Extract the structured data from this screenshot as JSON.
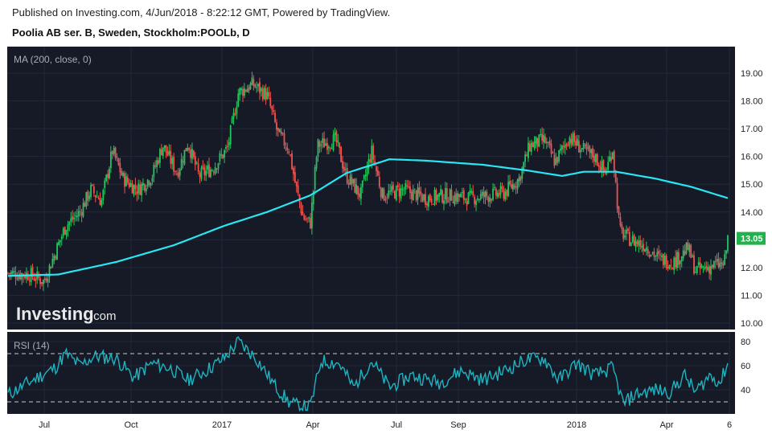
{
  "header": {
    "published": "Published on Investing.com, 4/Jun/2018 - 8:22:12 GMT, Powered by TradingView.",
    "title": "Poolia AB ser. B, Sweden, Stockholm:POOLb, D"
  },
  "indicators": {
    "ma_label": "MA (200, close, 0)",
    "rsi_label": "RSI (14)"
  },
  "watermark": {
    "brand": "Investing",
    "suffix": ".com"
  },
  "colors": {
    "panel_bg": "#161a27",
    "up": "#22c55e",
    "down": "#ef5350",
    "ma": "#29e6f2",
    "rsi": "#1fb3bf",
    "price_badge": "#22b14c"
  },
  "chart_data": [
    {
      "type": "candlestick",
      "ylim": [
        9.8,
        19.4
      ],
      "y_ticks": [
        "10.00",
        "11.00",
        "12.00",
        "13.00",
        "14.00",
        "15.00",
        "16.00",
        "17.00",
        "18.00",
        "19.00"
      ],
      "y_tick_values": [
        10,
        11,
        12,
        13,
        14,
        15,
        16,
        17,
        18,
        19
      ],
      "last_price": "13.05",
      "last_price_value": 13.05,
      "x_labels": [
        "Jul",
        "Oct",
        "2017",
        "Apr",
        "Jul",
        "Sep",
        "2018",
        "Apr",
        "6"
      ],
      "close_path": [
        {
          "t": 0.0,
          "v": 11.8
        },
        {
          "t": 0.03,
          "v": 11.75
        },
        {
          "t": 0.05,
          "v": 11.5
        },
        {
          "t": 0.065,
          "v": 12.5
        },
        {
          "t": 0.08,
          "v": 13.5
        },
        {
          "t": 0.1,
          "v": 14.0
        },
        {
          "t": 0.115,
          "v": 14.8
        },
        {
          "t": 0.13,
          "v": 14.4
        },
        {
          "t": 0.145,
          "v": 16.2
        },
        {
          "t": 0.16,
          "v": 15.2
        },
        {
          "t": 0.18,
          "v": 14.8
        },
        {
          "t": 0.2,
          "v": 15.3
        },
        {
          "t": 0.215,
          "v": 16.4
        },
        {
          "t": 0.235,
          "v": 15.4
        },
        {
          "t": 0.25,
          "v": 16.5
        },
        {
          "t": 0.265,
          "v": 15.3
        },
        {
          "t": 0.285,
          "v": 15.6
        },
        {
          "t": 0.305,
          "v": 16.3
        },
        {
          "t": 0.32,
          "v": 18.3
        },
        {
          "t": 0.34,
          "v": 18.6
        },
        {
          "t": 0.36,
          "v": 18.2
        },
        {
          "t": 0.375,
          "v": 16.8
        },
        {
          "t": 0.39,
          "v": 16.3
        },
        {
          "t": 0.4,
          "v": 14.9
        },
        {
          "t": 0.41,
          "v": 13.8
        },
        {
          "t": 0.42,
          "v": 13.6
        },
        {
          "t": 0.43,
          "v": 16.4
        },
        {
          "t": 0.455,
          "v": 16.6
        },
        {
          "t": 0.47,
          "v": 15.3
        },
        {
          "t": 0.49,
          "v": 14.6
        },
        {
          "t": 0.505,
          "v": 16.2
        },
        {
          "t": 0.52,
          "v": 14.6
        },
        {
          "t": 0.55,
          "v": 14.8
        },
        {
          "t": 0.58,
          "v": 14.5
        },
        {
          "t": 0.61,
          "v": 14.6
        },
        {
          "t": 0.64,
          "v": 14.5
        },
        {
          "t": 0.67,
          "v": 14.6
        },
        {
          "t": 0.69,
          "v": 14.7
        },
        {
          "t": 0.71,
          "v": 15.2
        },
        {
          "t": 0.725,
          "v": 16.4
        },
        {
          "t": 0.745,
          "v": 16.6
        },
        {
          "t": 0.76,
          "v": 15.8
        },
        {
          "t": 0.78,
          "v": 16.7
        },
        {
          "t": 0.8,
          "v": 16.2
        },
        {
          "t": 0.815,
          "v": 16.0
        },
        {
          "t": 0.83,
          "v": 15.4
        },
        {
          "t": 0.84,
          "v": 16.3
        },
        {
          "t": 0.85,
          "v": 13.3
        },
        {
          "t": 0.865,
          "v": 13.0
        },
        {
          "t": 0.885,
          "v": 12.8
        },
        {
          "t": 0.905,
          "v": 12.3
        },
        {
          "t": 0.925,
          "v": 12.2
        },
        {
          "t": 0.945,
          "v": 12.7
        },
        {
          "t": 0.955,
          "v": 11.9
        },
        {
          "t": 0.97,
          "v": 12.0
        },
        {
          "t": 0.985,
          "v": 12.1
        },
        {
          "t": 0.995,
          "v": 12.1
        },
        {
          "t": 1.0,
          "v": 13.05
        }
      ],
      "ma_path": [
        {
          "t": 0.0,
          "v": 11.7
        },
        {
          "t": 0.07,
          "v": 11.75
        },
        {
          "t": 0.15,
          "v": 12.2
        },
        {
          "t": 0.23,
          "v": 12.8
        },
        {
          "t": 0.3,
          "v": 13.5
        },
        {
          "t": 0.36,
          "v": 14.0
        },
        {
          "t": 0.42,
          "v": 14.6
        },
        {
          "t": 0.47,
          "v": 15.4
        },
        {
          "t": 0.53,
          "v": 15.9
        },
        {
          "t": 0.58,
          "v": 15.85
        },
        {
          "t": 0.66,
          "v": 15.7
        },
        {
          "t": 0.72,
          "v": 15.5
        },
        {
          "t": 0.77,
          "v": 15.3
        },
        {
          "t": 0.8,
          "v": 15.45
        },
        {
          "t": 0.845,
          "v": 15.45
        },
        {
          "t": 0.9,
          "v": 15.2
        },
        {
          "t": 0.95,
          "v": 14.9
        },
        {
          "t": 1.0,
          "v": 14.5
        }
      ]
    },
    {
      "type": "line",
      "ylim": [
        22,
        88
      ],
      "y_ticks": [
        "40",
        "60",
        "80"
      ],
      "y_tick_values": [
        40,
        60,
        80
      ],
      "levels": [
        30,
        70
      ],
      "rsi_path": [
        {
          "t": 0.0,
          "v": 36
        },
        {
          "t": 0.04,
          "v": 50
        },
        {
          "t": 0.065,
          "v": 58
        },
        {
          "t": 0.08,
          "v": 70
        },
        {
          "t": 0.1,
          "v": 60
        },
        {
          "t": 0.12,
          "v": 68
        },
        {
          "t": 0.15,
          "v": 66
        },
        {
          "t": 0.175,
          "v": 50
        },
        {
          "t": 0.2,
          "v": 62
        },
        {
          "t": 0.225,
          "v": 58
        },
        {
          "t": 0.25,
          "v": 48
        },
        {
          "t": 0.275,
          "v": 56
        },
        {
          "t": 0.3,
          "v": 66
        },
        {
          "t": 0.32,
          "v": 80
        },
        {
          "t": 0.345,
          "v": 66
        },
        {
          "t": 0.37,
          "v": 44
        },
        {
          "t": 0.39,
          "v": 30
        },
        {
          "t": 0.405,
          "v": 26
        },
        {
          "t": 0.42,
          "v": 26
        },
        {
          "t": 0.435,
          "v": 64
        },
        {
          "t": 0.46,
          "v": 62
        },
        {
          "t": 0.48,
          "v": 42
        },
        {
          "t": 0.505,
          "v": 64
        },
        {
          "t": 0.53,
          "v": 42
        },
        {
          "t": 0.56,
          "v": 52
        },
        {
          "t": 0.6,
          "v": 46
        },
        {
          "t": 0.63,
          "v": 56
        },
        {
          "t": 0.66,
          "v": 48
        },
        {
          "t": 0.69,
          "v": 56
        },
        {
          "t": 0.72,
          "v": 65
        },
        {
          "t": 0.745,
          "v": 66
        },
        {
          "t": 0.765,
          "v": 48
        },
        {
          "t": 0.79,
          "v": 62
        },
        {
          "t": 0.815,
          "v": 52
        },
        {
          "t": 0.84,
          "v": 58
        },
        {
          "t": 0.855,
          "v": 28
        },
        {
          "t": 0.87,
          "v": 36
        },
        {
          "t": 0.9,
          "v": 40
        },
        {
          "t": 0.92,
          "v": 38
        },
        {
          "t": 0.94,
          "v": 52
        },
        {
          "t": 0.955,
          "v": 38
        },
        {
          "t": 0.975,
          "v": 52
        },
        {
          "t": 0.99,
          "v": 46
        },
        {
          "t": 1.0,
          "v": 63
        }
      ]
    }
  ]
}
